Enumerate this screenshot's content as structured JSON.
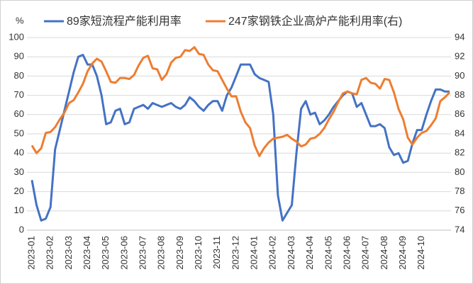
{
  "chart_data": {
    "type": "line",
    "y_label": "%",
    "categories": [
      "2023-01",
      null,
      null,
      null,
      "2023-02",
      null,
      null,
      null,
      "2023-03",
      null,
      null,
      null,
      "2023-04",
      null,
      null,
      null,
      "2023-05",
      null,
      null,
      null,
      "2023-06",
      null,
      null,
      null,
      "2023-07",
      null,
      null,
      null,
      "2023-08",
      null,
      null,
      null,
      "2023-09",
      null,
      null,
      null,
      "2023-10",
      null,
      null,
      null,
      "2023-11",
      null,
      null,
      null,
      "2023-12",
      null,
      null,
      null,
      "2024-01",
      null,
      null,
      null,
      "2024-02",
      null,
      null,
      null,
      "2024-03",
      null,
      null,
      null,
      "2024-04",
      null,
      null,
      null,
      "2024-05",
      null,
      null,
      null,
      "2024-06",
      null,
      null,
      null,
      "2024-07",
      null,
      null,
      null,
      "2024-08",
      null,
      null,
      null,
      "2024-09",
      null,
      null,
      null,
      "2024-10",
      null,
      null,
      null,
      null,
      null,
      null
    ],
    "series": [
      {
        "name": "89家短流程产能利用率",
        "color": "#4472c4",
        "axis": "y",
        "values": [
          26,
          13,
          5,
          6,
          12,
          42,
          52,
          62,
          72,
          82,
          90,
          91,
          86,
          86,
          80,
          70,
          55,
          56,
          62,
          63,
          55,
          56,
          63,
          64,
          65,
          63,
          66,
          65,
          64,
          65,
          66,
          64,
          63,
          65,
          69,
          67,
          64,
          62,
          65,
          67,
          67,
          62,
          70,
          74,
          80,
          86,
          86,
          86,
          81,
          79,
          78,
          77,
          60,
          18,
          5,
          9,
          13,
          40,
          63,
          67,
          60,
          61,
          55,
          57,
          60,
          64,
          67,
          70,
          72,
          71,
          64,
          66,
          60,
          54,
          54,
          55,
          53,
          43,
          39,
          40,
          35,
          36,
          45,
          52,
          52,
          60,
          67,
          73,
          73,
          72,
          72
        ]
      },
      {
        "name": "247家钢铁企业高炉产能利用率(右)",
        "color": "#ed7d31",
        "axis": "y2",
        "values": [
          82.8,
          82,
          82.5,
          84.1,
          84.2,
          84.7,
          85.5,
          86.2,
          87.2,
          87.5,
          88.3,
          89.2,
          90.5,
          91.3,
          91.8,
          91.5,
          90.5,
          89.4,
          89.3,
          89.8,
          89.8,
          89.7,
          90.1,
          91.1,
          91.9,
          92.1,
          90.8,
          90.7,
          89.6,
          90.2,
          91.4,
          91.9,
          92,
          92.7,
          92.6,
          93,
          92.3,
          92.2,
          91.2,
          90.6,
          90.5,
          89.6,
          88.7,
          87.9,
          87.9,
          86.3,
          85.2,
          84.6,
          82.8,
          81.7,
          82.5,
          83.1,
          83.5,
          83.6,
          83.7,
          83.9,
          83.5,
          83.2,
          82.7,
          82.9,
          83.5,
          83.6,
          84,
          84.6,
          85.5,
          86.3,
          87.3,
          88.2,
          88.4,
          88.2,
          88.1,
          89.6,
          89.8,
          89.3,
          89.2,
          88.7,
          89.7,
          89.6,
          88.3,
          86.6,
          85.5,
          83.6,
          82.9,
          83.6,
          84.1,
          84.3,
          84.9,
          85.6,
          87.4,
          87.8,
          88.3
        ]
      }
    ],
    "ylim": [
      0,
      100
    ],
    "yticks": [
      0,
      10,
      20,
      30,
      40,
      50,
      60,
      70,
      80,
      90,
      100
    ],
    "y2lim": [
      74,
      94
    ],
    "y2ticks": [
      74,
      76,
      78,
      80,
      82,
      84,
      86,
      88,
      90,
      92,
      94
    ],
    "grid": true,
    "legend": "top"
  }
}
